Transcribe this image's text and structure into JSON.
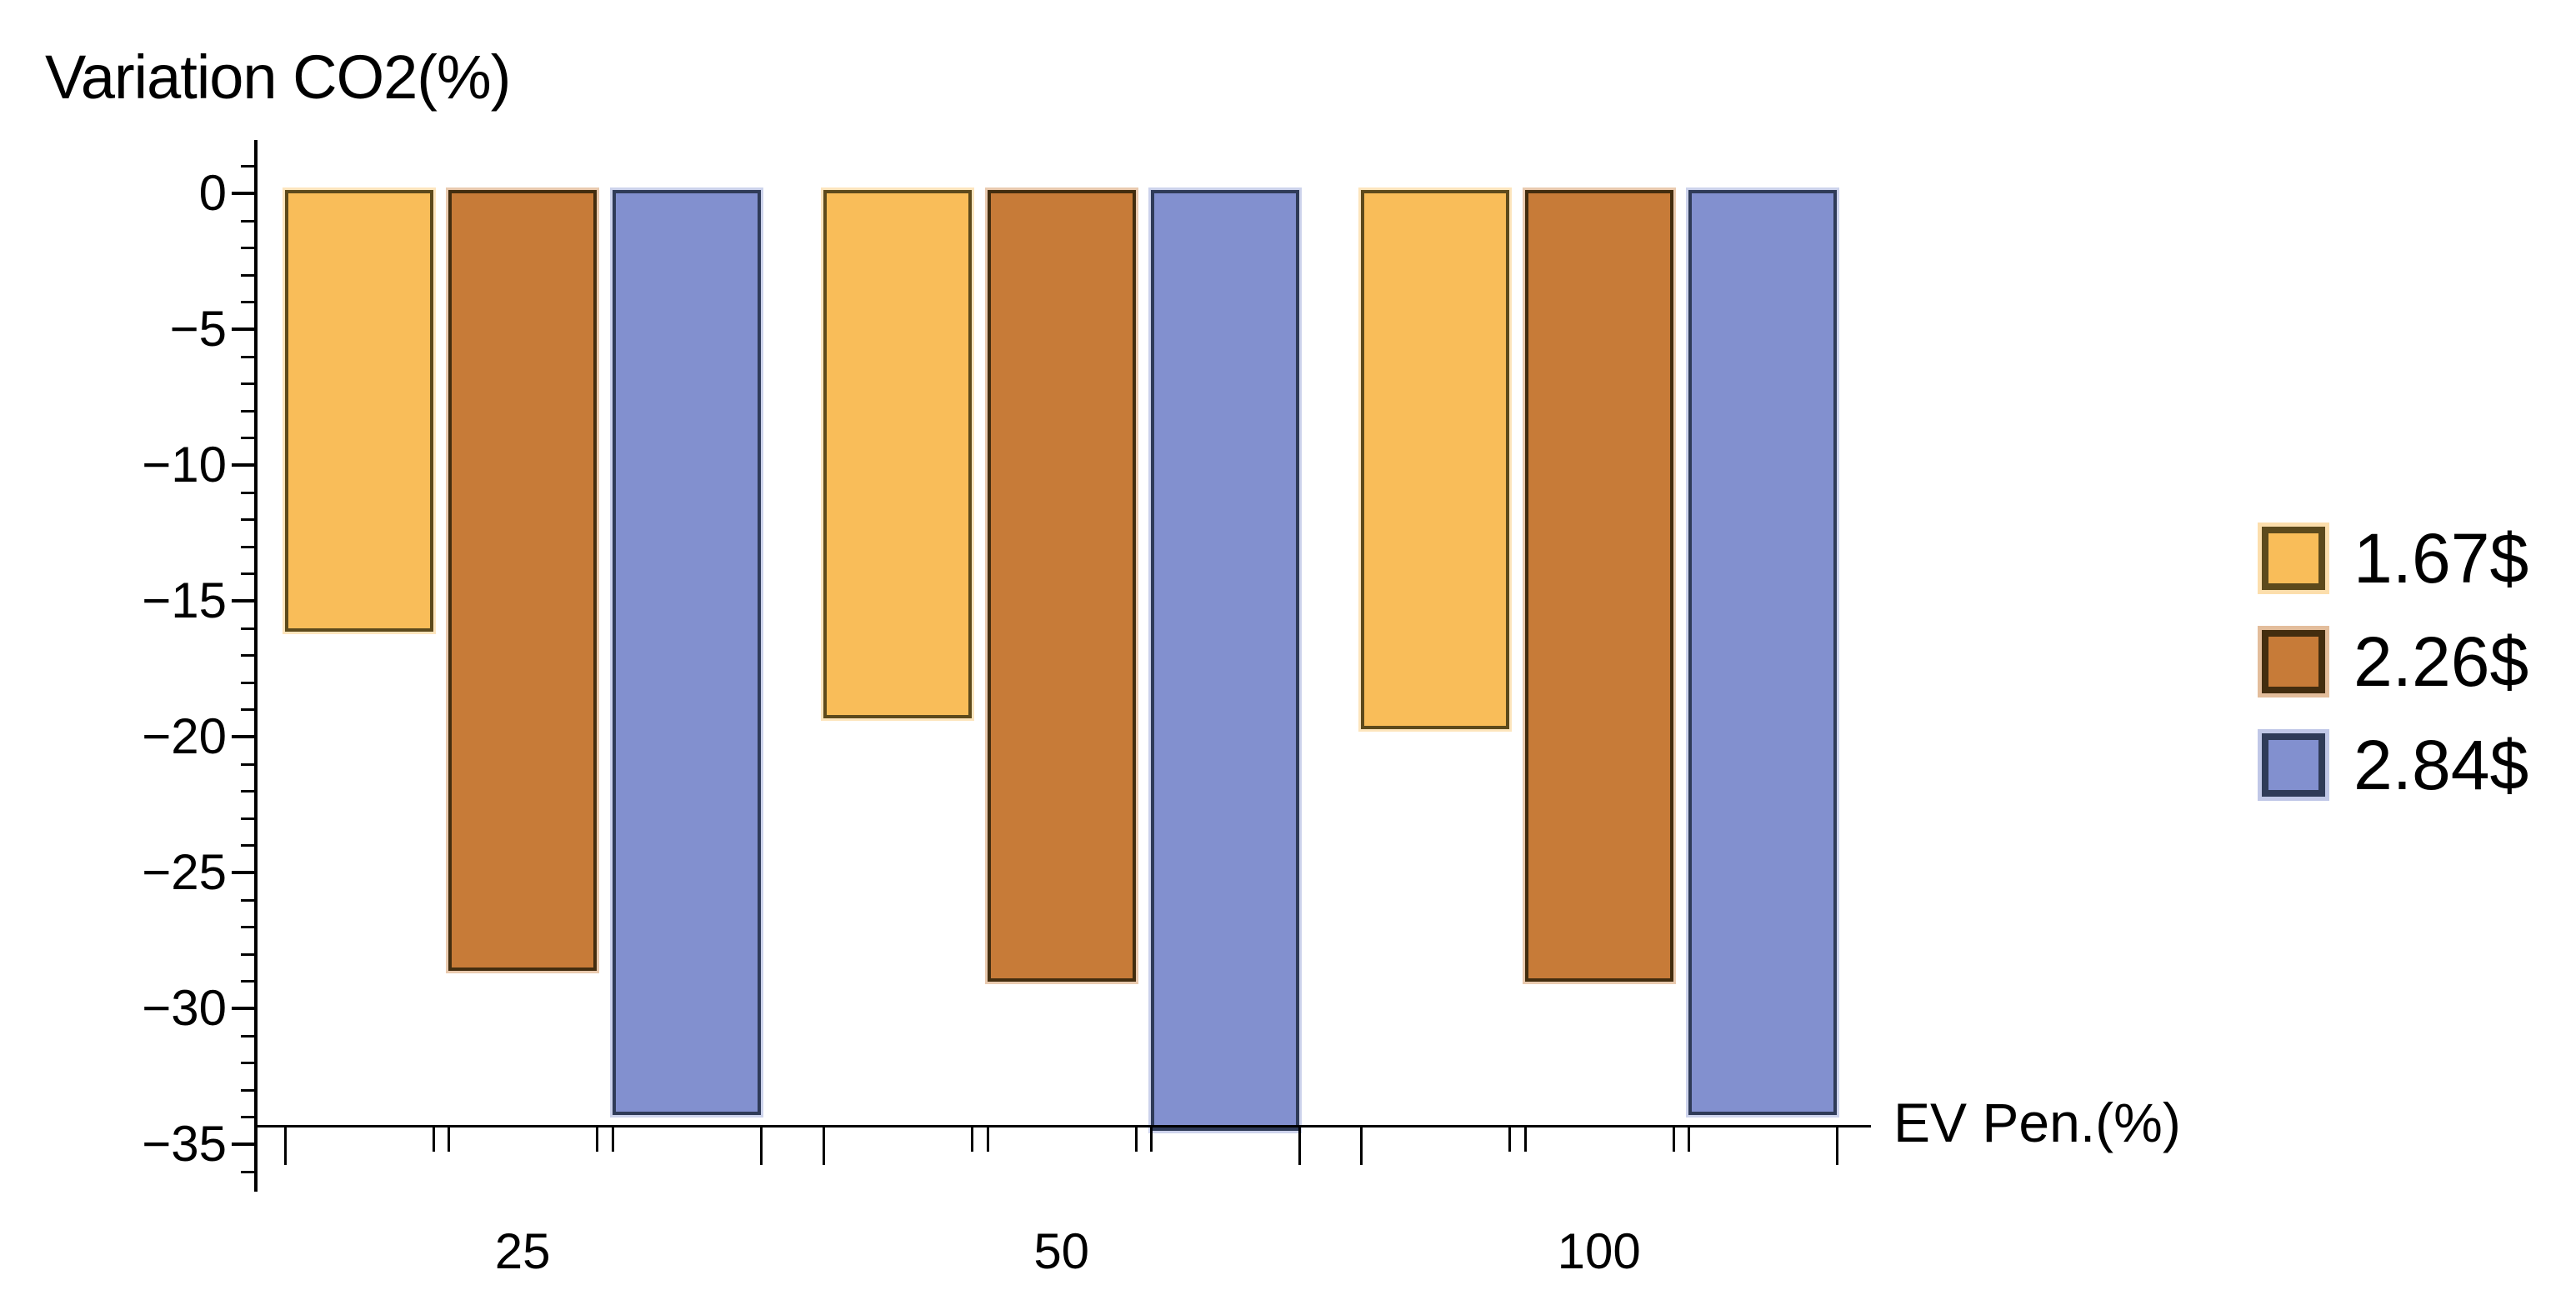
{
  "chart_data": {
    "type": "bar",
    "ylabel": "Variation CO2(%)",
    "xlabel": "EV Pen.(%)",
    "categories": [
      "25",
      "50",
      "100"
    ],
    "series": [
      {
        "name": "1.67$",
        "values": [
          -16.0,
          -19.2,
          -19.6
        ],
        "color": "#F9BD59",
        "edge": "#5D4A1C"
      },
      {
        "name": "2.26$",
        "values": [
          -28.5,
          -28.9,
          -28.9
        ],
        "color": "#C77B38",
        "edge": "#432D0F"
      },
      {
        "name": "2.84$",
        "values": [
          -33.8,
          -34.4,
          -33.8
        ],
        "color": "#8290CF",
        "edge": "#2F3B58"
      }
    ],
    "ylim": [
      -34.35,
      0
    ],
    "yticks_major": [
      0,
      -5,
      -10,
      -15,
      -20,
      -25,
      -30,
      -35
    ],
    "ytick_labels": [
      "0",
      "−5",
      "−10",
      "−15",
      "−20",
      "−25",
      "−30",
      "−35"
    ],
    "minor_tick_step": 1,
    "grid": false,
    "legend_position": "right",
    "legend_labels": [
      "1.67$",
      "2.26$",
      "2.84$"
    ]
  }
}
